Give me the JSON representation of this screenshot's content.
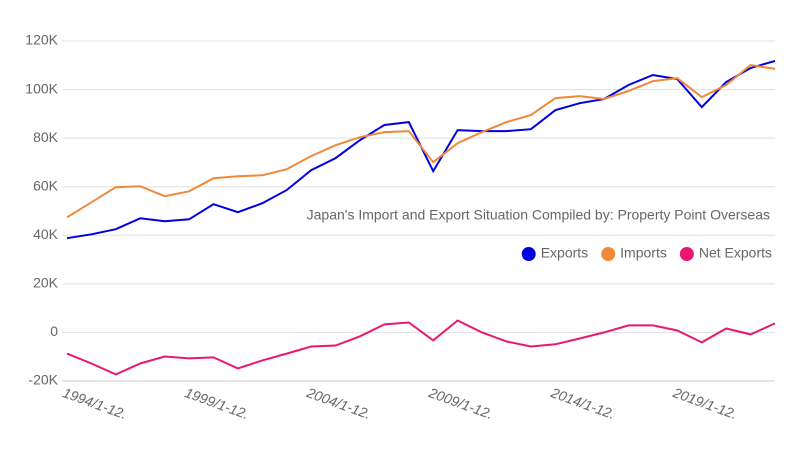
{
  "chart_data": {
    "type": "line",
    "title": "Japan's Import and Export Situation Compiled by: Property Point Overseas",
    "categories": [
      "1994/1-12.",
      null,
      null,
      null,
      null,
      "1999/1-12.",
      null,
      null,
      null,
      null,
      "2004/1-12.",
      null,
      null,
      null,
      null,
      "2009/1-12.",
      null,
      null,
      null,
      null,
      "2014/1-12.",
      null,
      null,
      null,
      null,
      "2019/1-12.",
      null,
      null,
      null,
      null
    ],
    "series": [
      {
        "name": "Exports",
        "color": "#0000e0",
        "values": [
          38800,
          40400,
          42500,
          47000,
          45800,
          46600,
          52800,
          49500,
          53200,
          58600,
          66800,
          71800,
          79200,
          85400,
          86600,
          66400,
          83300,
          82900,
          82900,
          83700,
          91500,
          94400,
          96100,
          101900,
          106000,
          104300,
          92800,
          103100,
          108900,
          111800
        ]
      },
      {
        "name": "Imports",
        "color": "#f0883a",
        "values": [
          47400,
          53600,
          59800,
          60200,
          56100,
          58100,
          63500,
          64300,
          64700,
          67200,
          72600,
          77100,
          80400,
          82500,
          82900,
          70100,
          77900,
          82500,
          86600,
          89500,
          96500,
          97300,
          96100,
          99400,
          103500,
          104700,
          96900,
          101900,
          110100,
          108500
        ]
      },
      {
        "name": "Net Exports",
        "color": "#e8186e",
        "values": [
          -8700,
          -12800,
          -17300,
          -12800,
          -9900,
          -10700,
          -10300,
          -14800,
          -11500,
          -8700,
          -5800,
          -5400,
          -1600,
          3300,
          4100,
          -3300,
          4900,
          0,
          -3700,
          -5800,
          -4900,
          -2500,
          0,
          2900,
          2900,
          800,
          -4100,
          1600,
          -800,
          3700
        ]
      }
    ],
    "ylim": [
      -20000,
      120000
    ],
    "yticks": [
      {
        "value": -20000,
        "label": "-20K"
      },
      0,
      {
        "value": 20000,
        "label": "20K"
      },
      {
        "value": 40000,
        "label": "40K"
      },
      {
        "value": 60000,
        "label": "60K"
      },
      {
        "value": 80000,
        "label": "80K"
      },
      {
        "value": 100000,
        "label": "100K"
      },
      {
        "value": 120000,
        "label": "120K"
      }
    ],
    "grid": true,
    "legend": "right"
  }
}
